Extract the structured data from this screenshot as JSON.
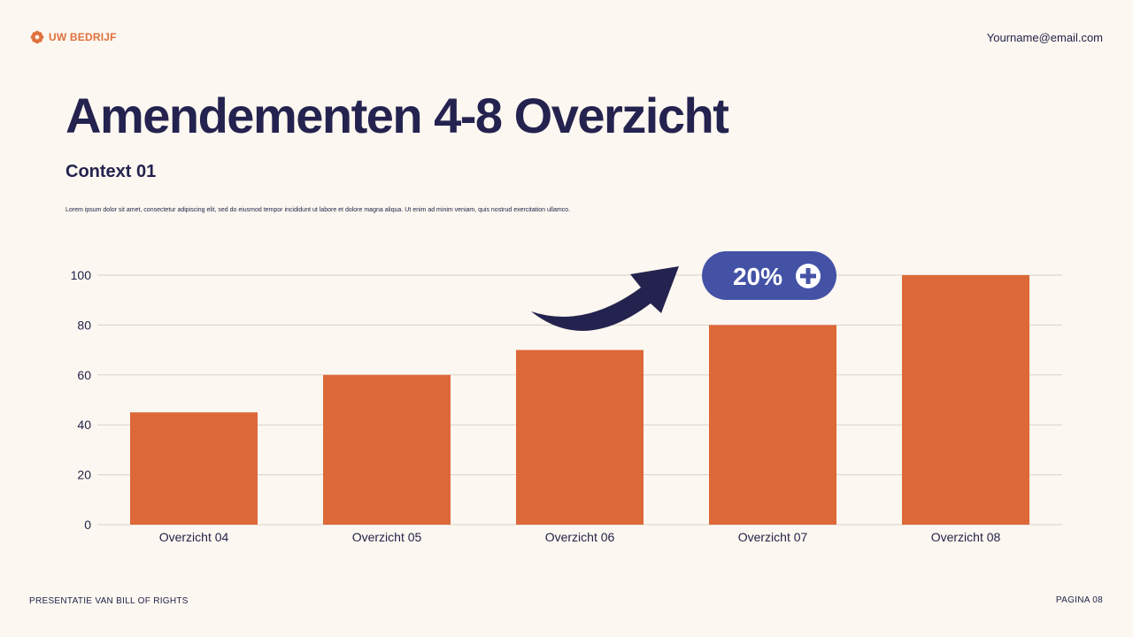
{
  "header": {
    "brand": "UW BEDRIJF",
    "email": "Yourname@email.com"
  },
  "title": "Amendementen 4-8 Overzicht",
  "subtitle": "Context 01",
  "body_text": "Lorem ipsum dolor sit amet, consectetur adipiscing elit, sed do eiusmod tempor incididunt ut labore et dolore magna aliqua. Ut enim ad minim veniam, quis nostrud exercitation ullamco.",
  "footer": {
    "left": "PRESENTATIE VAN BILL OF RIGHTS",
    "right": "PAGINA 08"
  },
  "colors": {
    "bar": "#dd6838",
    "accent": "#e0703b",
    "navy": "#24234f",
    "badge": "#4452a6",
    "grid": "#d9d2c8"
  },
  "chart_data": {
    "type": "bar",
    "categories": [
      "Overzicht 04",
      "Overzicht 05",
      "Overzicht 06",
      "Overzicht 07",
      "Overzicht 08"
    ],
    "values": [
      45,
      60,
      70,
      80,
      100
    ],
    "yticks": [
      0,
      20,
      40,
      60,
      80,
      100
    ],
    "ylim": [
      0,
      100
    ],
    "grid": true,
    "annotation": {
      "text": "20%",
      "icon": "plus-circle-icon",
      "arrow": "curved-arrow-up-right-icon"
    }
  }
}
